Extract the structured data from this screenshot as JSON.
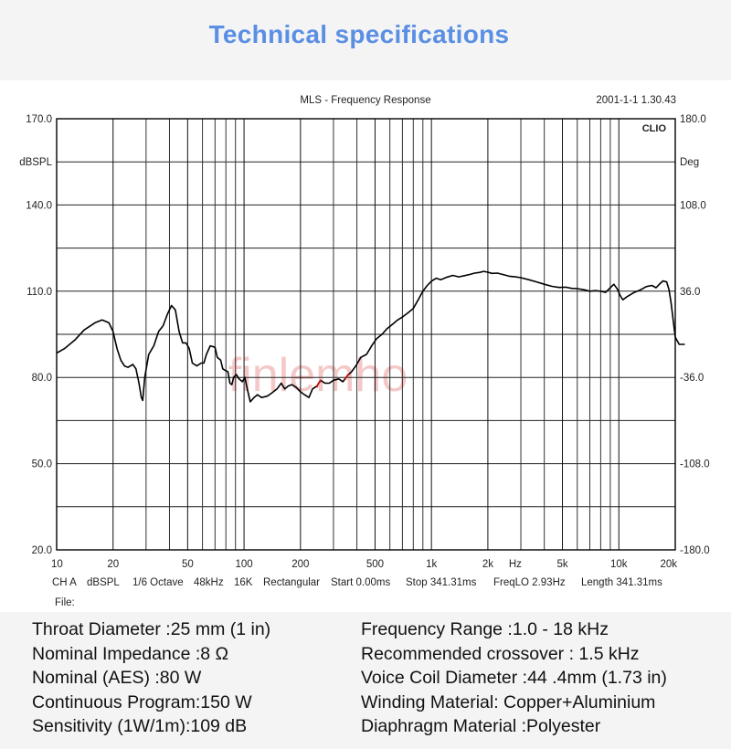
{
  "heading": "Technical specifications",
  "chart_data": {
    "type": "line",
    "title": "MLS - Frequency Response",
    "timestamp": "2001-1-1 1.30.43",
    "brand": "CLIO",
    "watermark": "finlemho",
    "y_left": {
      "unit": "dBSPL",
      "range": [
        20,
        170
      ],
      "ticks": [
        "170.0",
        "140.0",
        "110.0",
        "80.0",
        "50.0",
        "20.0"
      ]
    },
    "y_right": {
      "unit": "Deg",
      "range": [
        -180,
        180
      ],
      "ticks": [
        "180.0",
        "108.0",
        "36.0",
        "-36.0",
        "-108.0",
        "-180.0"
      ]
    },
    "x_axis": {
      "scale": "log",
      "range": [
        10,
        20000
      ],
      "unit": "Hz",
      "tick_values": [
        10,
        20,
        50,
        100,
        200,
        500,
        1000,
        2000,
        5000,
        10000,
        20000
      ],
      "tick_labels": [
        "10",
        "20",
        "50",
        "100",
        "200",
        "500",
        "1k",
        "2k",
        "5k",
        "10k",
        "20k"
      ]
    },
    "grid": true,
    "settings": [
      "CH A",
      "dBSPL",
      "1/6 Octave",
      "48kHz",
      "16K",
      "Rectangular",
      "Start 0.00ms",
      "Stop 341.31ms",
      "FreqLO 2.93Hz",
      "Length 341.31ms"
    ],
    "file_label": "File:",
    "series": [
      {
        "color": "#000000",
        "points": [
          [
            10,
            88.5
          ],
          [
            11,
            90
          ],
          [
            12.5,
            93
          ],
          [
            14,
            96.5
          ],
          [
            16,
            99
          ],
          [
            17.5,
            100
          ],
          [
            19,
            99
          ],
          [
            20,
            96
          ],
          [
            21,
            90
          ],
          [
            22,
            86
          ],
          [
            23,
            84
          ],
          [
            24,
            83.5
          ],
          [
            25.5,
            84.5
          ],
          [
            26.5,
            83
          ],
          [
            27.5,
            78
          ],
          [
            28.3,
            73
          ],
          [
            28.8,
            72
          ],
          [
            29.5,
            80
          ],
          [
            31,
            88
          ],
          [
            33,
            91
          ],
          [
            35,
            96
          ],
          [
            37,
            98
          ],
          [
            39,
            102
          ],
          [
            41,
            105
          ],
          [
            43,
            103.5
          ],
          [
            45,
            96
          ],
          [
            47,
            92
          ],
          [
            49,
            92
          ],
          [
            51,
            90
          ],
          [
            53,
            85
          ],
          [
            56,
            84
          ],
          [
            59,
            85
          ],
          [
            61,
            85
          ],
          [
            63,
            88
          ],
          [
            66,
            91
          ],
          [
            70,
            90.5
          ],
          [
            72,
            87
          ],
          [
            75,
            86
          ],
          [
            77,
            83
          ],
          [
            79,
            82.5
          ],
          [
            82,
            82
          ],
          [
            84,
            78
          ],
          [
            86,
            77.5
          ],
          [
            88,
            80
          ],
          [
            91,
            81
          ],
          [
            94,
            79.5
          ],
          [
            98,
            78.5
          ],
          [
            101,
            80
          ],
          [
            104,
            76
          ],
          [
            108,
            71.5
          ],
          [
            113,
            73
          ],
          [
            118,
            74
          ],
          [
            124,
            73
          ],
          [
            133,
            73.5
          ],
          [
            140,
            74.5
          ],
          [
            150,
            76
          ],
          [
            158,
            78
          ],
          [
            165,
            76
          ],
          [
            172,
            77
          ],
          [
            180,
            77.5
          ],
          [
            190,
            76.5
          ],
          [
            200,
            75
          ],
          [
            210,
            74
          ],
          [
            222,
            73
          ],
          [
            232,
            76
          ],
          [
            245,
            77
          ],
          [
            256,
            79
          ],
          [
            270,
            78
          ],
          [
            285,
            78
          ],
          [
            300,
            79
          ],
          [
            320,
            79.5
          ],
          [
            337,
            78.5
          ],
          [
            355,
            80.5
          ],
          [
            375,
            82
          ],
          [
            395,
            84
          ],
          [
            420,
            87
          ],
          [
            450,
            88
          ],
          [
            480,
            91
          ],
          [
            510,
            93.5
          ],
          [
            545,
            95
          ],
          [
            580,
            97
          ],
          [
            620,
            98.5
          ],
          [
            660,
            100
          ],
          [
            700,
            101
          ],
          [
            750,
            102.5
          ],
          [
            800,
            104
          ],
          [
            850,
            107
          ],
          [
            900,
            110
          ],
          [
            950,
            112
          ],
          [
            1000,
            113.5
          ],
          [
            1060,
            114.5
          ],
          [
            1120,
            114
          ],
          [
            1200,
            114.8
          ],
          [
            1300,
            115.5
          ],
          [
            1400,
            115
          ],
          [
            1500,
            115.4
          ],
          [
            1600,
            115.8
          ],
          [
            1700,
            116.3
          ],
          [
            1800,
            116.5
          ],
          [
            1900,
            116.9
          ],
          [
            2000,
            116.6
          ],
          [
            2100,
            116.2
          ],
          [
            2250,
            116.3
          ],
          [
            2400,
            115.8
          ],
          [
            2600,
            115.2
          ],
          [
            2800,
            115
          ],
          [
            3000,
            114.7
          ],
          [
            3300,
            114
          ],
          [
            3600,
            113.3
          ],
          [
            4000,
            112.4
          ],
          [
            4400,
            111.7
          ],
          [
            4800,
            111.3
          ],
          [
            5200,
            111.4
          ],
          [
            5600,
            111
          ],
          [
            6000,
            110.9
          ],
          [
            6500,
            110.5
          ],
          [
            7000,
            110
          ],
          [
            7500,
            110.2
          ],
          [
            8000,
            110
          ],
          [
            8500,
            109.6
          ],
          [
            9000,
            111.2
          ],
          [
            9400,
            112.4
          ],
          [
            9800,
            110.8
          ],
          [
            10200,
            108.3
          ],
          [
            10500,
            107
          ],
          [
            11000,
            108
          ],
          [
            12000,
            109.5
          ],
          [
            13000,
            110.4
          ],
          [
            14000,
            111.6
          ],
          [
            15000,
            112
          ],
          [
            15800,
            111.2
          ],
          [
            16500,
            112.5
          ],
          [
            17200,
            113.6
          ],
          [
            18000,
            113.2
          ],
          [
            18500,
            110.6
          ],
          [
            19000,
            106
          ],
          [
            19500,
            100
          ],
          [
            20000,
            94
          ],
          [
            21000,
            91.5
          ],
          [
            22500,
            91.5
          ]
        ]
      },
      {
        "color": "#cc1111",
        "points": [
          [
            244,
            76.5
          ],
          [
            250,
            78
          ],
          [
            258,
            79
          ]
        ]
      },
      {
        "color": "#cc1111",
        "points": [
          [
            345,
            79.2
          ],
          [
            355,
            80.5
          ],
          [
            362,
            81.2
          ]
        ]
      }
    ]
  },
  "specs": {
    "left": [
      "Throat Diameter :25 mm (1 in)",
      "Nominal Impedance :8 Ω",
      "Nominal (AES) :80 W",
      "Continuous Program:150 W",
      "Sensitivity (1W/1m):109 dB"
    ],
    "right": [
      "Frequency Range :1.0 - 18 kHz",
      "Recommended crossover : 1.5 kHz",
      "Voice Coil Diameter :44 .4mm (1.73 in)",
      "Winding Material: Copper+Aluminium",
      "Diaphragm Material :Polyester"
    ]
  }
}
